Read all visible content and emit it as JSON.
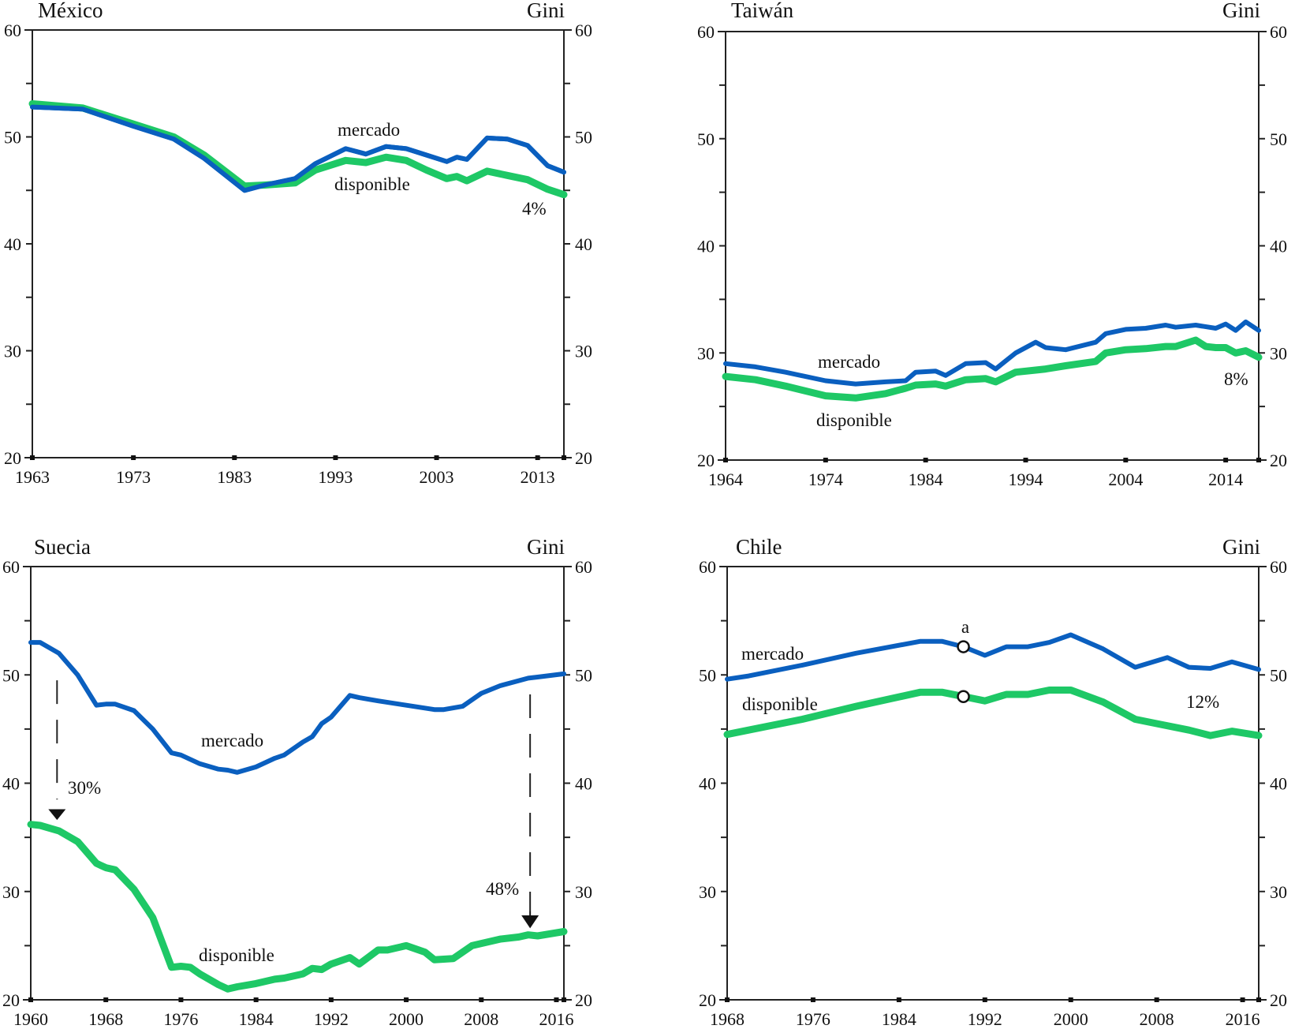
{
  "colors": {
    "mercado": "#0a5fbf",
    "disponible": "#1ec866",
    "axis": "#222222"
  },
  "chart_data": [
    {
      "type": "line",
      "title": "México",
      "ylabel_right": "Gini",
      "ylim": [
        20,
        60
      ],
      "yticks": [
        20,
        30,
        40,
        50,
        60
      ],
      "xlim": [
        1963,
        2015.6
      ],
      "xticks": [
        1963,
        1973,
        1983,
        1993,
        2003,
        2013
      ],
      "series": [
        {
          "name": "mercado",
          "label": "mercado",
          "x": [
            1963,
            1968,
            1973,
            1977,
            1980,
            1984,
            1986,
            1989,
            1991,
            1994,
            1996,
            1998,
            2000,
            2002,
            2004,
            2005,
            2006,
            2008,
            2010,
            2012,
            2014,
            2015.6
          ],
          "values": [
            52.8,
            52.6,
            51.0,
            49.8,
            48.0,
            45.0,
            45.5,
            46.1,
            47.5,
            48.9,
            48.4,
            49.1,
            48.9,
            48.3,
            47.7,
            48.1,
            47.9,
            49.9,
            49.8,
            49.2,
            47.3,
            46.7
          ]
        },
        {
          "name": "disponible",
          "label": "disponible",
          "x": [
            1963,
            1968,
            1973,
            1977,
            1980,
            1984,
            1986,
            1989,
            1991,
            1994,
            1996,
            1998,
            2000,
            2002,
            2004,
            2005,
            2006,
            2008,
            2010,
            2012,
            2014,
            2015.6
          ],
          "values": [
            53.1,
            52.7,
            51.2,
            50.0,
            48.3,
            45.4,
            45.5,
            45.7,
            46.9,
            47.8,
            47.6,
            48.1,
            47.8,
            46.9,
            46.1,
            46.3,
            45.9,
            46.8,
            46.4,
            46.0,
            45.1,
            44.6
          ]
        }
      ],
      "annotations": [
        {
          "text": "4%"
        }
      ]
    },
    {
      "type": "line",
      "title": "Taiwán",
      "ylabel_right": "Gini",
      "ylim": [
        20,
        60
      ],
      "yticks": [
        20,
        30,
        40,
        50,
        60
      ],
      "xlim": [
        1964,
        2017.3
      ],
      "xticks": [
        1964,
        1974,
        1984,
        1994,
        2004,
        2014
      ],
      "series": [
        {
          "name": "mercado",
          "label": "mercado",
          "x": [
            1964,
            1967,
            1970,
            1974,
            1977,
            1980,
            1982,
            1983,
            1985,
            1986,
            1988,
            1990,
            1991,
            1993,
            1995,
            1996,
            1998,
            2001,
            2002,
            2004,
            2006,
            2008,
            2009,
            2011,
            2013,
            2014,
            2015,
            2016,
            2017.3
          ],
          "values": [
            29.0,
            28.7,
            28.2,
            27.4,
            27.1,
            27.3,
            27.4,
            28.2,
            28.3,
            27.9,
            29.0,
            29.1,
            28.5,
            30.0,
            31.0,
            30.5,
            30.3,
            31.0,
            31.8,
            32.2,
            32.3,
            32.6,
            32.4,
            32.6,
            32.3,
            32.7,
            32.1,
            32.9,
            32.1
          ]
        },
        {
          "name": "disponible",
          "label": "disponible",
          "x": [
            1964,
            1967,
            1970,
            1974,
            1977,
            1980,
            1982,
            1983,
            1985,
            1986,
            1988,
            1990,
            1991,
            1993,
            1995,
            1996,
            1998,
            2001,
            2002,
            2004,
            2006,
            2008,
            2009,
            2011,
            2012,
            2013,
            2014,
            2015,
            2016,
            2017.3
          ],
          "values": [
            27.8,
            27.5,
            26.9,
            26.0,
            25.8,
            26.2,
            26.7,
            27.0,
            27.1,
            26.9,
            27.5,
            27.6,
            27.3,
            28.2,
            28.4,
            28.5,
            28.8,
            29.2,
            30.0,
            30.3,
            30.4,
            30.6,
            30.6,
            31.2,
            30.6,
            30.5,
            30.5,
            30.0,
            30.2,
            29.6
          ]
        }
      ],
      "annotations": [
        {
          "text": "8%"
        }
      ]
    },
    {
      "type": "line",
      "title": "Suecia",
      "ylabel_right": "Gini",
      "ylim": [
        20,
        60
      ],
      "yticks": [
        20,
        30,
        40,
        50,
        60
      ],
      "xlim": [
        1960,
        2016.8
      ],
      "xticks": [
        1960,
        1968,
        1976,
        1984,
        1992,
        2000,
        2008,
        2016
      ],
      "series": [
        {
          "name": "mercado",
          "label": "mercado",
          "x": [
            1960,
            1961,
            1963,
            1965,
            1967,
            1968,
            1969,
            1971,
            1973,
            1975,
            1976,
            1978,
            1980,
            1981,
            1982,
            1984,
            1986,
            1987,
            1989,
            1990,
            1991,
            1992,
            1994,
            1995,
            1997,
            2000,
            2003,
            2004,
            2006,
            2008,
            2010,
            2013,
            2014,
            2016.8
          ],
          "values": [
            53.0,
            53.0,
            52.0,
            50.0,
            47.2,
            47.3,
            47.3,
            46.7,
            45.0,
            42.8,
            42.6,
            41.8,
            41.3,
            41.2,
            41.0,
            41.5,
            42.3,
            42.6,
            43.8,
            44.3,
            45.5,
            46.1,
            48.1,
            47.9,
            47.6,
            47.2,
            46.8,
            46.8,
            47.1,
            48.3,
            49.0,
            49.7,
            49.8,
            50.1
          ]
        },
        {
          "name": "disponible",
          "label": "disponible",
          "x": [
            1960,
            1961,
            1963,
            1965,
            1967,
            1968,
            1969,
            1971,
            1973,
            1975,
            1976,
            1977,
            1978,
            1980,
            1981,
            1982,
            1984,
            1986,
            1987,
            1989,
            1990,
            1991,
            1992,
            1993,
            1994,
            1995,
            1997,
            1998,
            2000,
            2002,
            2003,
            2005,
            2007,
            2010,
            2012,
            2013,
            2014,
            2016.8
          ],
          "values": [
            36.2,
            36.1,
            35.6,
            34.6,
            32.6,
            32.2,
            32.0,
            30.2,
            27.6,
            23.0,
            23.1,
            23.0,
            22.4,
            21.4,
            21.0,
            21.2,
            21.5,
            21.9,
            22.0,
            22.4,
            22.9,
            22.8,
            23.3,
            23.6,
            23.9,
            23.3,
            24.6,
            24.6,
            25.0,
            24.4,
            23.7,
            23.8,
            25.0,
            25.6,
            25.8,
            26.0,
            25.9,
            26.3
          ]
        }
      ],
      "annotations": [
        {
          "text": "30%"
        },
        {
          "text": "48%"
        }
      ]
    },
    {
      "type": "line",
      "title": "Chile",
      "ylabel_right": "Gini",
      "ylim": [
        20,
        60
      ],
      "yticks": [
        20,
        30,
        40,
        50,
        60
      ],
      "xlim": [
        1968,
        2017.5
      ],
      "xticks": [
        1968,
        1976,
        1984,
        1992,
        2000,
        2008,
        2016
      ],
      "series": [
        {
          "name": "mercado",
          "label": "mercado",
          "x": [
            1968,
            1970,
            1975,
            1980,
            1986,
            1988,
            1990,
            1992,
            1994,
            1996,
            1998,
            2000,
            2003,
            2006,
            2009,
            2011,
            2013,
            2015,
            2017.5
          ],
          "values": [
            49.6,
            49.9,
            50.9,
            52.0,
            53.1,
            53.1,
            52.6,
            51.8,
            52.6,
            52.6,
            53.0,
            53.7,
            52.4,
            50.7,
            51.6,
            50.7,
            50.6,
            51.2,
            50.5
          ]
        },
        {
          "name": "disponible",
          "label": "disponible",
          "x": [
            1968,
            1970,
            1975,
            1980,
            1986,
            1988,
            1990,
            1992,
            1994,
            1996,
            1998,
            2000,
            2003,
            2006,
            2008,
            2011,
            2013,
            2015,
            2017.5
          ],
          "values": [
            44.5,
            44.9,
            45.9,
            47.1,
            48.4,
            48.4,
            48.0,
            47.6,
            48.2,
            48.2,
            48.6,
            48.6,
            47.5,
            45.9,
            45.5,
            44.9,
            44.4,
            44.8,
            44.4
          ]
        }
      ],
      "markers": [
        {
          "label": "a",
          "x": 1990
        }
      ],
      "annotations": [
        {
          "text": "12%"
        }
      ]
    }
  ]
}
